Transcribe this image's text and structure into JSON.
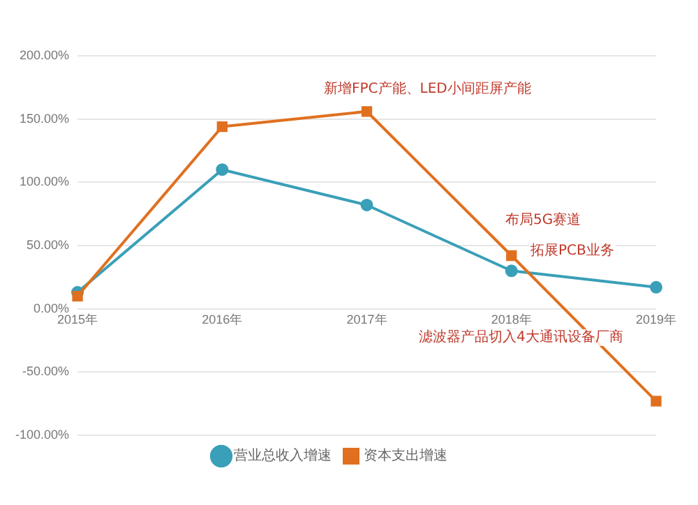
{
  "chart_data": {
    "type": "line",
    "categories": [
      "2015年",
      "2016年",
      "2017年",
      "2018年",
      "2019年"
    ],
    "series": [
      {
        "name": "营业总收入增速",
        "color": "#3a9fb8",
        "marker": "circle",
        "values": [
          13,
          110,
          82,
          30,
          17
        ]
      },
      {
        "name": "资本支出增速",
        "color": "#e0701f",
        "marker": "square",
        "values": [
          10,
          144,
          156,
          42,
          -73
        ]
      }
    ],
    "ylim": [
      -100,
      200
    ],
    "yticks": [
      {
        "value": -100,
        "label": "-100.00%"
      },
      {
        "value": -50,
        "label": "-50.00%"
      },
      {
        "value": 0,
        "label": "0.00%"
      },
      {
        "value": 50,
        "label": "50.00%"
      },
      {
        "value": 100,
        "label": "100.00%"
      },
      {
        "value": 150,
        "label": "150.00%"
      },
      {
        "value": 200,
        "label": "200.00%"
      }
    ],
    "grid": "y",
    "legend": "bottom",
    "line_style": "solid",
    "annotations": [
      "新增FPC产能、LED小间距屏产能",
      "布局5G赛道",
      "拓展PCB业务",
      "滤波器产品切入4大通讯设备厂商"
    ]
  }
}
